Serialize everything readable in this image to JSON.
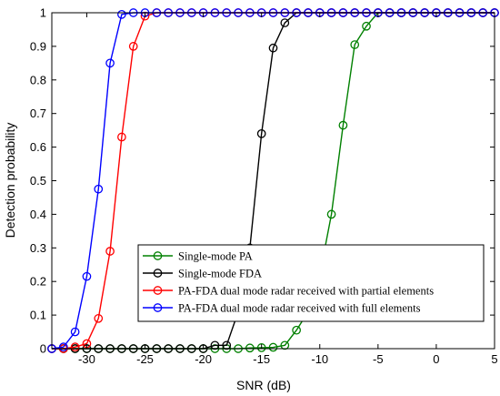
{
  "chart_data": {
    "type": "line",
    "title": "",
    "xlabel": "SNR (dB)",
    "ylabel": "Detection probability",
    "xlim": [
      -33,
      5
    ],
    "ylim": [
      0,
      1
    ],
    "x_ticks": [
      -30,
      -25,
      -20,
      -15,
      -10,
      -5,
      0,
      5
    ],
    "y_ticks": [
      0,
      0.1,
      0.2,
      0.3,
      0.4,
      0.5,
      0.6,
      0.7,
      0.8,
      0.9,
      1
    ],
    "x_tick_labels": [
      "-30",
      "-25",
      "-20",
      "-15",
      "-10",
      "-5",
      "0",
      "5"
    ],
    "y_tick_labels": [
      "0",
      "0.1",
      "0.2",
      "0.3",
      "0.4",
      "0.5",
      "0.6",
      "0.7",
      "0.8",
      "0.9",
      "1"
    ],
    "grid": false,
    "legend_position": "bottom-right",
    "marker": "circle",
    "x": [
      -33,
      -32,
      -31,
      -30,
      -29,
      -28,
      -27,
      -26,
      -25,
      -24,
      -23,
      -22,
      -21,
      -20,
      -19,
      -18,
      -17,
      -16,
      -15,
      -14,
      -13,
      -12,
      -11,
      -10,
      -9,
      -8,
      -7,
      -6,
      -5,
      -4,
      -3,
      -2,
      -1,
      0,
      1,
      2,
      3,
      4,
      5
    ],
    "series": [
      {
        "name": "Single-mode PA",
        "color": "#008000",
        "values": [
          0,
          0,
          0,
          0,
          0,
          0,
          0,
          0,
          0,
          0,
          0,
          0,
          0,
          0,
          0,
          0,
          0,
          0.002,
          0.003,
          0.004,
          0.01,
          0.055,
          0.11,
          0.22,
          0.4,
          0.665,
          0.905,
          0.96,
          1,
          1,
          1,
          1,
          1,
          1,
          1,
          1,
          1,
          1,
          1
        ]
      },
      {
        "name": "Single-mode FDA",
        "color": "#000000",
        "values": [
          0,
          0,
          0,
          0,
          0,
          0,
          0,
          0,
          0,
          0,
          0,
          0,
          0,
          0,
          0.01,
          0.01,
          0.11,
          0.3,
          0.64,
          0.895,
          0.97,
          1,
          1,
          1,
          1,
          1,
          1,
          1,
          1,
          1,
          1,
          1,
          1,
          1,
          1,
          1,
          1,
          1,
          1
        ]
      },
      {
        "name": "PA-FDA dual mode radar received with partial elements",
        "color": "#ff0000",
        "values": [
          0,
          0,
          0.005,
          0.015,
          0.09,
          0.29,
          0.63,
          0.9,
          0.99,
          1,
          1,
          1,
          1,
          1,
          1,
          1,
          1,
          1,
          1,
          1,
          1,
          1,
          1,
          1,
          1,
          1,
          1,
          1,
          1,
          1,
          1,
          1,
          1,
          1,
          1,
          1,
          1,
          1,
          1
        ]
      },
      {
        "name": "PA-FDA dual mode radar received with full elements",
        "color": "#0000ff",
        "values": [
          0,
          0.005,
          0.05,
          0.215,
          0.475,
          0.85,
          0.995,
          1,
          1,
          1,
          1,
          1,
          1,
          1,
          1,
          1,
          1,
          1,
          1,
          1,
          1,
          1,
          1,
          1,
          1,
          1,
          1,
          1,
          1,
          1,
          1,
          1,
          1,
          1,
          1,
          1,
          1,
          1,
          1
        ]
      }
    ]
  }
}
